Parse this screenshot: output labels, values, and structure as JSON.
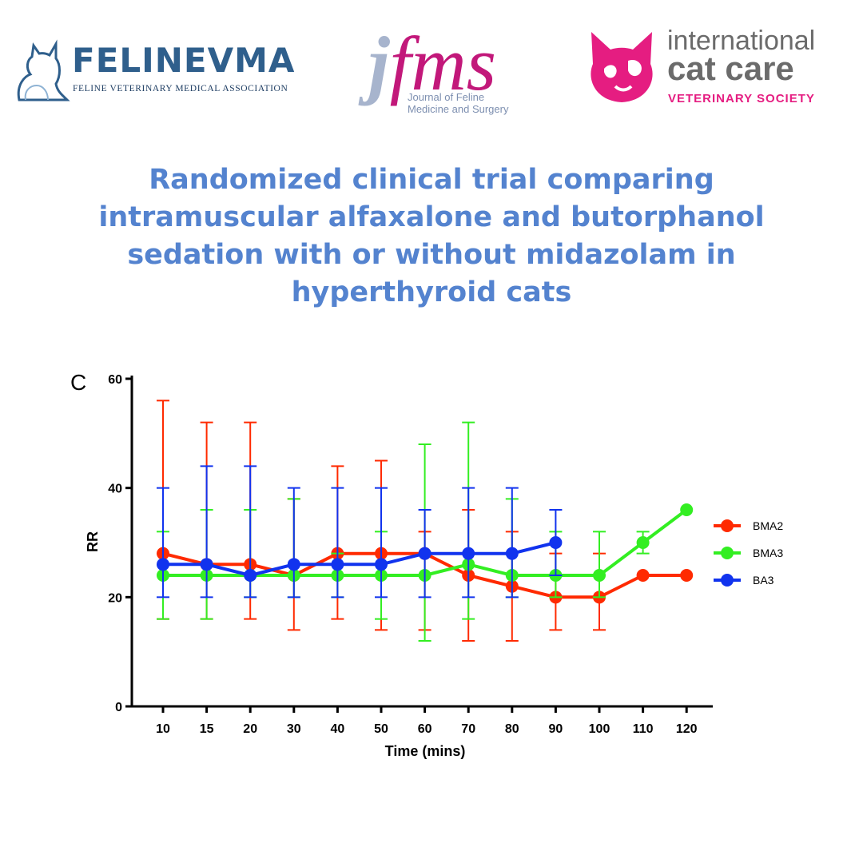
{
  "logos": {
    "felinevma": {
      "name": "FELINEVMA",
      "subtitle": "FELINE VETERINARY MEDICAL ASSOCIATION",
      "color": "#2f5f8c"
    },
    "jfms": {
      "mark_j": "j",
      "mark_rest": "fms",
      "subtitle_line1": "Journal of Feline",
      "subtitle_line2": "Medicine and Surgery",
      "colors": [
        "#a7b4cd",
        "#c2187a"
      ]
    },
    "icc": {
      "line1": "international",
      "line2": "cat care",
      "line3": "VETERINARY SOCIETY",
      "colors": [
        "#6b6b6b",
        "#e51d81"
      ]
    }
  },
  "title": "Randomized clinical trial comparing intramuscular alfaxalone and butorphanol sedation with or without midazolam in hyperthyroid cats",
  "chart_data": {
    "type": "line",
    "panel_label": "C",
    "xlabel": "Time (mins)",
    "ylabel": "RR",
    "categories": [
      "10",
      "15",
      "20",
      "30",
      "40",
      "50",
      "60",
      "70",
      "80",
      "90",
      "100",
      "110",
      "120"
    ],
    "ylim": [
      0,
      60
    ],
    "yticks": [
      0,
      20,
      40,
      60
    ],
    "grid": false,
    "legend": "right",
    "series": [
      {
        "name": "BMA2",
        "color": "#ff2a00",
        "values": [
          28,
          26,
          26,
          24,
          28,
          28,
          28,
          24,
          22,
          20,
          20,
          24,
          24
        ],
        "err_low": [
          16,
          16,
          16,
          14,
          16,
          14,
          14,
          12,
          12,
          14,
          14,
          null,
          null
        ],
        "err_high": [
          56,
          52,
          52,
          38,
          44,
          45,
          32,
          36,
          32,
          28,
          28,
          null,
          null
        ]
      },
      {
        "name": "BMA3",
        "color": "#33ee22",
        "values": [
          24,
          24,
          24,
          24,
          24,
          24,
          24,
          26,
          24,
          24,
          24,
          30,
          36
        ],
        "err_low": [
          16,
          16,
          20,
          20,
          20,
          16,
          12,
          16,
          20,
          20,
          20,
          28,
          null
        ],
        "err_high": [
          32,
          36,
          36,
          38,
          28,
          32,
          48,
          52,
          38,
          32,
          32,
          32,
          null
        ]
      },
      {
        "name": "BA3",
        "color": "#1133ee",
        "values": [
          26,
          26,
          24,
          26,
          26,
          26,
          28,
          28,
          28,
          30,
          null,
          null,
          null
        ],
        "err_low": [
          20,
          20,
          20,
          20,
          20,
          20,
          20,
          20,
          20,
          24,
          null,
          null,
          null
        ],
        "err_high": [
          40,
          44,
          44,
          40,
          40,
          40,
          36,
          40,
          40,
          36,
          null,
          null,
          null
        ]
      }
    ]
  }
}
